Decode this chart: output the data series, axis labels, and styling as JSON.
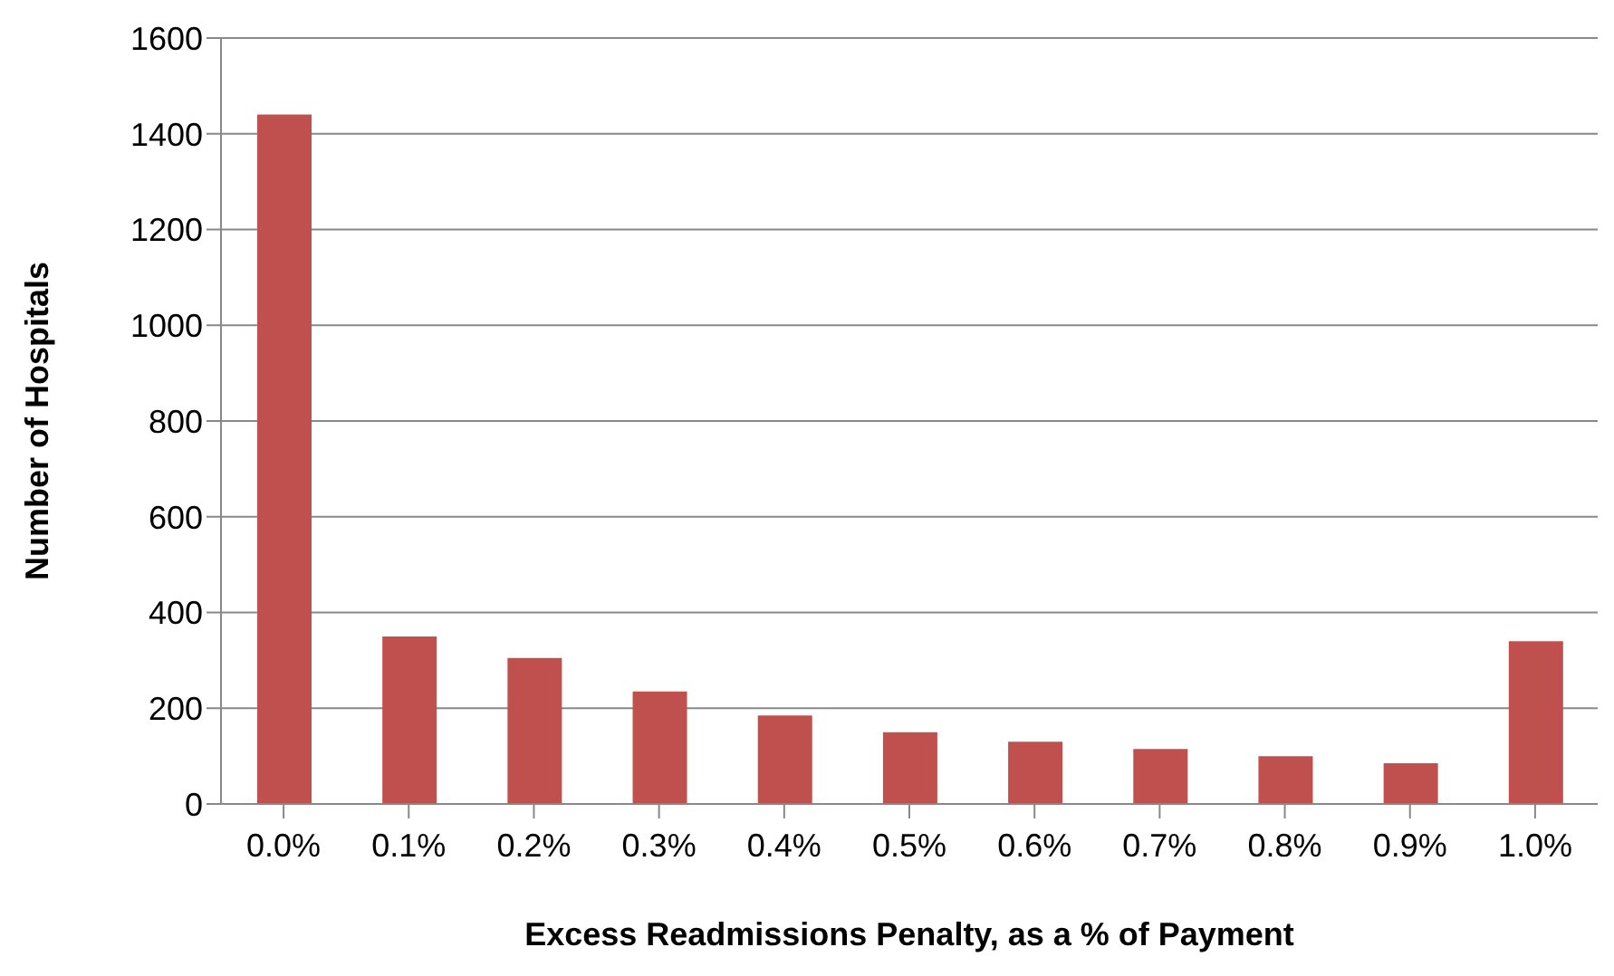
{
  "chart_data": {
    "type": "bar",
    "xlabel": "Excess Readmissions Penalty, as a % of Payment",
    "ylabel": "Number of Hospitals",
    "categories": [
      "0.0%",
      "0.1%",
      "0.2%",
      "0.3%",
      "0.4%",
      "0.5%",
      "0.6%",
      "0.7%",
      "0.8%",
      "0.9%",
      "1.0%"
    ],
    "values": [
      1440,
      350,
      305,
      235,
      185,
      150,
      130,
      115,
      100,
      85,
      340
    ],
    "color": "#c0504d",
    "ylim": [
      0,
      1600
    ],
    "yticks": [
      0,
      200,
      400,
      600,
      800,
      1000,
      1200,
      1400,
      1600
    ],
    "grid": "y"
  }
}
